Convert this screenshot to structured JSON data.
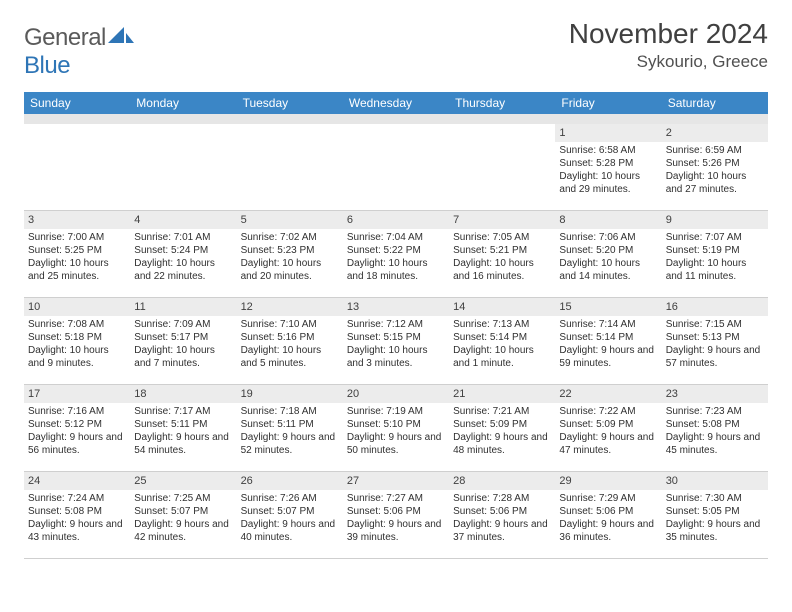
{
  "brand": {
    "name_a": "General",
    "name_b": "Blue"
  },
  "title": "November 2024",
  "location": "Sykourio, Greece",
  "colors": {
    "header_bar": "#3b86c6",
    "daynum_bg": "#ececec",
    "spacer_bg": "#e6e6e6",
    "border": "#cfcfcf",
    "text": "#303030",
    "brand_gray": "#5a5a5a",
    "brand_blue": "#2e75b6"
  },
  "dow": [
    "Sunday",
    "Monday",
    "Tuesday",
    "Wednesday",
    "Thursday",
    "Friday",
    "Saturday"
  ],
  "weeks": [
    [
      {
        "n": "",
        "sr": "",
        "ss": "",
        "dl": ""
      },
      {
        "n": "",
        "sr": "",
        "ss": "",
        "dl": ""
      },
      {
        "n": "",
        "sr": "",
        "ss": "",
        "dl": ""
      },
      {
        "n": "",
        "sr": "",
        "ss": "",
        "dl": ""
      },
      {
        "n": "",
        "sr": "",
        "ss": "",
        "dl": ""
      },
      {
        "n": "1",
        "sr": "Sunrise: 6:58 AM",
        "ss": "Sunset: 5:28 PM",
        "dl": "Daylight: 10 hours and 29 minutes."
      },
      {
        "n": "2",
        "sr": "Sunrise: 6:59 AM",
        "ss": "Sunset: 5:26 PM",
        "dl": "Daylight: 10 hours and 27 minutes."
      }
    ],
    [
      {
        "n": "3",
        "sr": "Sunrise: 7:00 AM",
        "ss": "Sunset: 5:25 PM",
        "dl": "Daylight: 10 hours and 25 minutes."
      },
      {
        "n": "4",
        "sr": "Sunrise: 7:01 AM",
        "ss": "Sunset: 5:24 PM",
        "dl": "Daylight: 10 hours and 22 minutes."
      },
      {
        "n": "5",
        "sr": "Sunrise: 7:02 AM",
        "ss": "Sunset: 5:23 PM",
        "dl": "Daylight: 10 hours and 20 minutes."
      },
      {
        "n": "6",
        "sr": "Sunrise: 7:04 AM",
        "ss": "Sunset: 5:22 PM",
        "dl": "Daylight: 10 hours and 18 minutes."
      },
      {
        "n": "7",
        "sr": "Sunrise: 7:05 AM",
        "ss": "Sunset: 5:21 PM",
        "dl": "Daylight: 10 hours and 16 minutes."
      },
      {
        "n": "8",
        "sr": "Sunrise: 7:06 AM",
        "ss": "Sunset: 5:20 PM",
        "dl": "Daylight: 10 hours and 14 minutes."
      },
      {
        "n": "9",
        "sr": "Sunrise: 7:07 AM",
        "ss": "Sunset: 5:19 PM",
        "dl": "Daylight: 10 hours and 11 minutes."
      }
    ],
    [
      {
        "n": "10",
        "sr": "Sunrise: 7:08 AM",
        "ss": "Sunset: 5:18 PM",
        "dl": "Daylight: 10 hours and 9 minutes."
      },
      {
        "n": "11",
        "sr": "Sunrise: 7:09 AM",
        "ss": "Sunset: 5:17 PM",
        "dl": "Daylight: 10 hours and 7 minutes."
      },
      {
        "n": "12",
        "sr": "Sunrise: 7:10 AM",
        "ss": "Sunset: 5:16 PM",
        "dl": "Daylight: 10 hours and 5 minutes."
      },
      {
        "n": "13",
        "sr": "Sunrise: 7:12 AM",
        "ss": "Sunset: 5:15 PM",
        "dl": "Daylight: 10 hours and 3 minutes."
      },
      {
        "n": "14",
        "sr": "Sunrise: 7:13 AM",
        "ss": "Sunset: 5:14 PM",
        "dl": "Daylight: 10 hours and 1 minute."
      },
      {
        "n": "15",
        "sr": "Sunrise: 7:14 AM",
        "ss": "Sunset: 5:14 PM",
        "dl": "Daylight: 9 hours and 59 minutes."
      },
      {
        "n": "16",
        "sr": "Sunrise: 7:15 AM",
        "ss": "Sunset: 5:13 PM",
        "dl": "Daylight: 9 hours and 57 minutes."
      }
    ],
    [
      {
        "n": "17",
        "sr": "Sunrise: 7:16 AM",
        "ss": "Sunset: 5:12 PM",
        "dl": "Daylight: 9 hours and 56 minutes."
      },
      {
        "n": "18",
        "sr": "Sunrise: 7:17 AM",
        "ss": "Sunset: 5:11 PM",
        "dl": "Daylight: 9 hours and 54 minutes."
      },
      {
        "n": "19",
        "sr": "Sunrise: 7:18 AM",
        "ss": "Sunset: 5:11 PM",
        "dl": "Daylight: 9 hours and 52 minutes."
      },
      {
        "n": "20",
        "sr": "Sunrise: 7:19 AM",
        "ss": "Sunset: 5:10 PM",
        "dl": "Daylight: 9 hours and 50 minutes."
      },
      {
        "n": "21",
        "sr": "Sunrise: 7:21 AM",
        "ss": "Sunset: 5:09 PM",
        "dl": "Daylight: 9 hours and 48 minutes."
      },
      {
        "n": "22",
        "sr": "Sunrise: 7:22 AM",
        "ss": "Sunset: 5:09 PM",
        "dl": "Daylight: 9 hours and 47 minutes."
      },
      {
        "n": "23",
        "sr": "Sunrise: 7:23 AM",
        "ss": "Sunset: 5:08 PM",
        "dl": "Daylight: 9 hours and 45 minutes."
      }
    ],
    [
      {
        "n": "24",
        "sr": "Sunrise: 7:24 AM",
        "ss": "Sunset: 5:08 PM",
        "dl": "Daylight: 9 hours and 43 minutes."
      },
      {
        "n": "25",
        "sr": "Sunrise: 7:25 AM",
        "ss": "Sunset: 5:07 PM",
        "dl": "Daylight: 9 hours and 42 minutes."
      },
      {
        "n": "26",
        "sr": "Sunrise: 7:26 AM",
        "ss": "Sunset: 5:07 PM",
        "dl": "Daylight: 9 hours and 40 minutes."
      },
      {
        "n": "27",
        "sr": "Sunrise: 7:27 AM",
        "ss": "Sunset: 5:06 PM",
        "dl": "Daylight: 9 hours and 39 minutes."
      },
      {
        "n": "28",
        "sr": "Sunrise: 7:28 AM",
        "ss": "Sunset: 5:06 PM",
        "dl": "Daylight: 9 hours and 37 minutes."
      },
      {
        "n": "29",
        "sr": "Sunrise: 7:29 AM",
        "ss": "Sunset: 5:06 PM",
        "dl": "Daylight: 9 hours and 36 minutes."
      },
      {
        "n": "30",
        "sr": "Sunrise: 7:30 AM",
        "ss": "Sunset: 5:05 PM",
        "dl": "Daylight: 9 hours and 35 minutes."
      }
    ]
  ]
}
